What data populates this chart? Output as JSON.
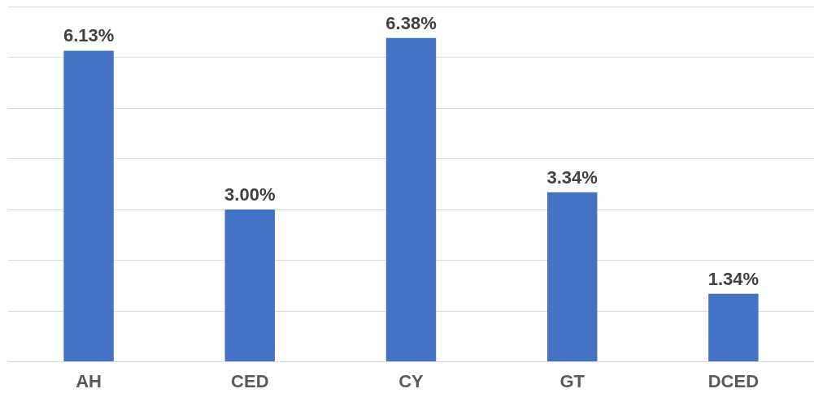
{
  "chart_data": {
    "type": "bar",
    "categories": [
      "AH",
      "CED",
      "CY",
      "GT",
      "DCED"
    ],
    "values": [
      6.13,
      3.0,
      6.38,
      3.34,
      1.34
    ],
    "value_labels": [
      "6.13%",
      "3.00%",
      "6.38%",
      "3.34%",
      "1.34%"
    ],
    "color": "#4472c4",
    "grid": "y",
    "tick_labels": "x"
  }
}
